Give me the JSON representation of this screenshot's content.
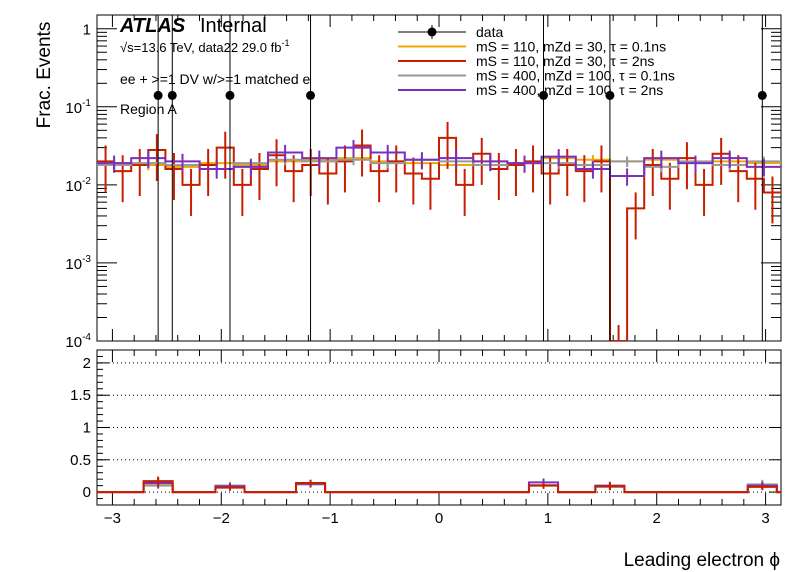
{
  "header": {
    "atlas": "ATLAS",
    "internal": "Internal",
    "energy_label": "√s=13.6 TeV, data22 29.0 fb",
    "lumi_sup": "-1",
    "selection": "ee + >=1 DV w/>=1 matched e",
    "region": "Region A"
  },
  "colors": {
    "data": "#000000",
    "s1": "#f0a800",
    "s2": "#c81e00",
    "s3": "#999999",
    "s4": "#7b2fbe"
  },
  "chart_data": [
    {
      "type": "histogram",
      "panel": "main",
      "ylabel": "Frac. Events",
      "yscale": "log",
      "ylim": [
        0.0001,
        1.5
      ],
      "xlim": [
        -3.1416,
        3.1416
      ],
      "y_ticks": [
        "10^{-4}",
        "10^{-3}",
        "10^{-2}",
        "10^{-1}",
        "1"
      ],
      "legend_position": "top-right",
      "legend": [
        {
          "key": "data",
          "label": "data"
        },
        {
          "key": "s1",
          "label": "mS = 110, mZd = 30, τ = 0.1ns"
        },
        {
          "key": "s2",
          "label": "mS = 110, mZd = 30, τ = 2ns"
        },
        {
          "key": "s3",
          "label": "mS = 400, mZd = 100, τ = 0.1ns"
        },
        {
          "key": "s4",
          "label": "mS = 400, mZd = 100, τ = 2ns"
        }
      ],
      "data_points": {
        "x": [
          -2.58,
          -2.45,
          -1.92,
          -1.18,
          0.96,
          1.57,
          2.97
        ],
        "y": [
          0.14,
          0.14,
          0.14,
          0.14,
          0.14,
          0.14,
          0.14
        ],
        "y_low": [
          0.0001,
          0.0001,
          0.0001,
          0.0001,
          0.0001,
          0.0001,
          0.0001
        ],
        "y_high": [
          1.5,
          1.5,
          1.5,
          1.5,
          1.5,
          1.5,
          1.5
        ]
      },
      "series": [
        {
          "key": "s1",
          "bin_edges": [
            -3.1416,
            -2.8274,
            -2.5133,
            -2.1991,
            -1.885,
            -1.5708,
            -1.2566,
            -0.9425,
            -0.6283,
            -0.3142,
            0,
            0.3142,
            0.6283,
            0.9425,
            1.2566,
            1.5708,
            1.885,
            2.1991,
            2.5133,
            2.8274,
            3.1416
          ],
          "values": [
            0.019,
            0.018,
            0.017,
            0.019,
            0.018,
            0.02,
            0.021,
            0.022,
            0.02,
            0.019,
            0.018,
            0.02,
            0.019,
            0.022,
            0.021,
            0.02,
            0.021,
            0.019,
            0.02,
            0.019
          ],
          "rel_err": 0.15
        },
        {
          "key": "s2",
          "bin_edges": [
            -3.1416,
            -2.9845,
            -2.8274,
            -2.6704,
            -2.5133,
            -2.3562,
            -2.1991,
            -2.042,
            -1.885,
            -1.7279,
            -1.5708,
            -1.4137,
            -1.2566,
            -1.0996,
            -0.9425,
            -0.7854,
            -0.6283,
            -0.4712,
            -0.3142,
            -0.1571,
            0,
            0.1571,
            0.3142,
            0.4712,
            0.6283,
            0.7854,
            0.9425,
            1.0996,
            1.2566,
            1.4137,
            1.5708,
            1.7279,
            1.885,
            2.042,
            2.1991,
            2.3562,
            2.5133,
            2.6704,
            2.8274,
            2.9845,
            3.1416
          ],
          "values": [
            0.02,
            0.015,
            0.018,
            0.028,
            0.016,
            0.01,
            0.018,
            0.03,
            0.01,
            0.016,
            0.024,
            0.015,
            0.018,
            0.014,
            0.02,
            0.032,
            0.015,
            0.02,
            0.014,
            0.012,
            0.04,
            0.01,
            0.025,
            0.016,
            0.018,
            0.02,
            0.014,
            0.018,
            0.015,
            0.02,
            0.0001,
            0.005,
            0.018,
            0.012,
            0.022,
            0.01,
            0.025,
            0.015,
            0.012,
            0.008
          ],
          "rel_err": 0.6
        },
        {
          "key": "s3",
          "bin_edges": [
            -3.1416,
            -2.8274,
            -2.5133,
            -2.1991,
            -1.885,
            -1.5708,
            -1.2566,
            -0.9425,
            -0.6283,
            -0.3142,
            0,
            0.3142,
            0.6283,
            0.9425,
            1.2566,
            1.5708,
            1.885,
            2.1991,
            2.5133,
            2.8274,
            3.1416
          ],
          "values": [
            0.018,
            0.019,
            0.018,
            0.016,
            0.019,
            0.021,
            0.02,
            0.021,
            0.019,
            0.021,
            0.02,
            0.018,
            0.019,
            0.019,
            0.018,
            0.02,
            0.017,
            0.02,
            0.018,
            0.02
          ],
          "rel_err": 0.15
        },
        {
          "key": "s4",
          "bin_edges": [
            -3.1416,
            -2.8274,
            -2.5133,
            -2.1991,
            -1.885,
            -1.5708,
            -1.2566,
            -0.9425,
            -0.6283,
            -0.3142,
            0,
            0.3142,
            0.6283,
            0.9425,
            1.2566,
            1.5708,
            1.885,
            2.1991,
            2.5133,
            2.8274,
            3.1416
          ],
          "values": [
            0.019,
            0.022,
            0.02,
            0.016,
            0.017,
            0.026,
            0.022,
            0.03,
            0.026,
            0.021,
            0.022,
            0.02,
            0.019,
            0.023,
            0.016,
            0.013,
            0.022,
            0.019,
            0.022,
            0.017
          ],
          "rel_err": 0.25
        }
      ]
    },
    {
      "type": "histogram",
      "panel": "ratio",
      "xlabel": "Leading electron ϕ",
      "ylim": [
        -0.2,
        2.2
      ],
      "xlim": [
        -3.1416,
        3.1416
      ],
      "x_ticks": [
        -3,
        -2,
        -1,
        0,
        1,
        2,
        3
      ],
      "y_ticks": [
        0,
        0.5,
        1,
        1.5,
        2
      ],
      "grid": "dotted-y",
      "spikes": [
        {
          "x": -2.58,
          "values": {
            "s1": 0.12,
            "s2": 0.17,
            "s3": 0.1,
            "s4": 0.14
          },
          "err": {
            "s1": 0.05,
            "s2": 0.07,
            "s3": 0.05,
            "s4": 0.08
          }
        },
        {
          "x": -1.92,
          "values": {
            "s1": 0.1,
            "s2": 0.07,
            "s3": 0.1,
            "s4": 0.09
          },
          "err": {
            "s1": 0.05,
            "s2": 0.05,
            "s3": 0.06,
            "s4": 0.05
          }
        },
        {
          "x": -1.18,
          "values": {
            "s1": 0.12,
            "s2": 0.14,
            "s3": 0.12,
            "s4": 0.13
          },
          "err": {
            "s1": 0.05,
            "s2": 0.05,
            "s3": 0.05,
            "s4": 0.06
          }
        },
        {
          "x": 0.96,
          "values": {
            "s1": 0.11,
            "s2": 0.1,
            "s3": 0.11,
            "s4": 0.15
          },
          "err": {
            "s1": 0.05,
            "s2": 0.05,
            "s3": 0.05,
            "s4": 0.06
          }
        },
        {
          "x": 1.57,
          "values": {
            "s1": 0.08,
            "s2": 0.09,
            "s3": 0.08,
            "s4": 0.1
          },
          "err": {
            "s1": 0.05,
            "s2": 0.06,
            "s3": 0.05,
            "s4": 0.06
          }
        },
        {
          "x": 2.97,
          "values": {
            "s1": 0.11,
            "s2": 0.08,
            "s3": 0.12,
            "s4": 0.1
          },
          "err": {
            "s1": 0.05,
            "s2": 0.05,
            "s3": 0.07,
            "s4": 0.06
          }
        }
      ]
    }
  ]
}
